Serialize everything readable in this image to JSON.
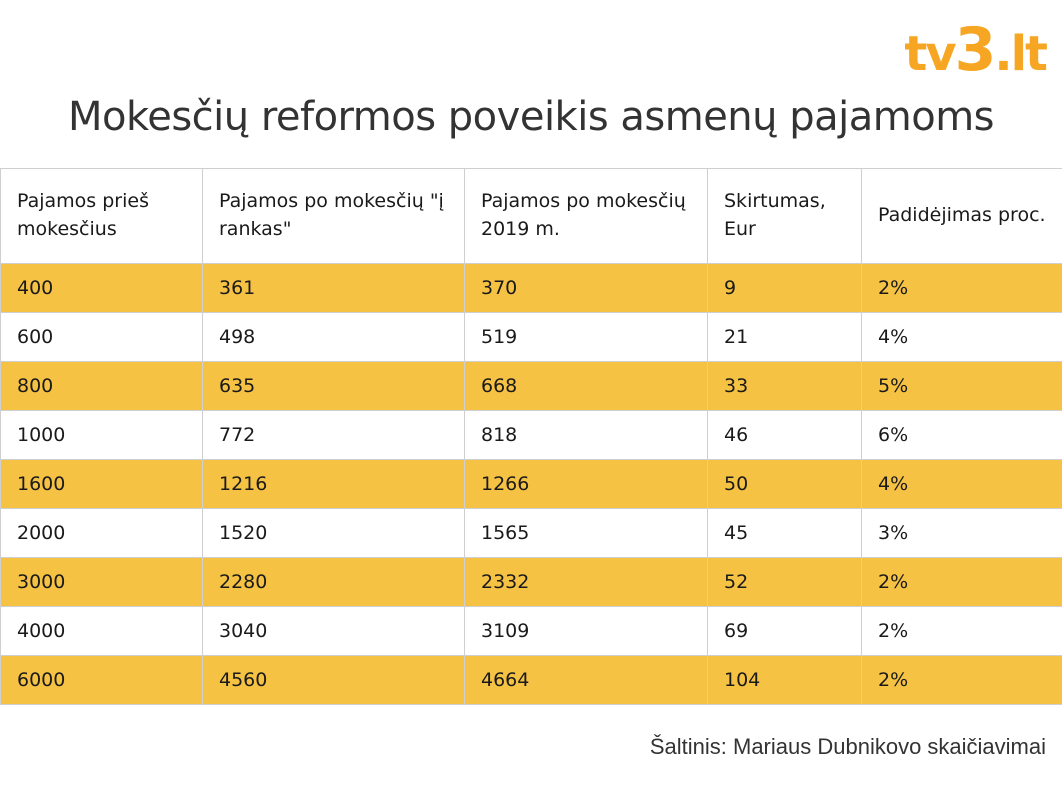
{
  "logo": {
    "part1": "tv",
    "part2": "3",
    "part3": ".lt"
  },
  "chart_data": {
    "type": "table",
    "title": "Mokesčių reformos poveikis asmenų pajamoms",
    "columns": [
      "Pajamos prieš mokesčius",
      "Pajamos po mokesčių \"į rankas\"",
      "Pajamos po mokesčių 2019 m.",
      "Skirtumas, Eur",
      "Padidėjimas proc."
    ],
    "rows": [
      [
        "400",
        "361",
        "370",
        "9",
        "2%"
      ],
      [
        "600",
        "498",
        "519",
        "21",
        "4%"
      ],
      [
        "800",
        "635",
        "668",
        "33",
        "5%"
      ],
      [
        "1000",
        "772",
        "818",
        "46",
        "6%"
      ],
      [
        "1600",
        "1216",
        "1266",
        "50",
        "4%"
      ],
      [
        "2000",
        "1520",
        "1565",
        "45",
        "3%"
      ],
      [
        "3000",
        "2280",
        "2332",
        "52",
        "2%"
      ],
      [
        "4000",
        "3040",
        "3109",
        "69",
        "2%"
      ],
      [
        "6000",
        "4560",
        "4664",
        "104",
        "2%"
      ]
    ],
    "source": "Šaltinis: Mariaus Dubnikovo skaičiavimai"
  },
  "colors": {
    "accent": "#f6a623",
    "row_highlight": "#f6c244",
    "border": "#cfcfcf"
  }
}
